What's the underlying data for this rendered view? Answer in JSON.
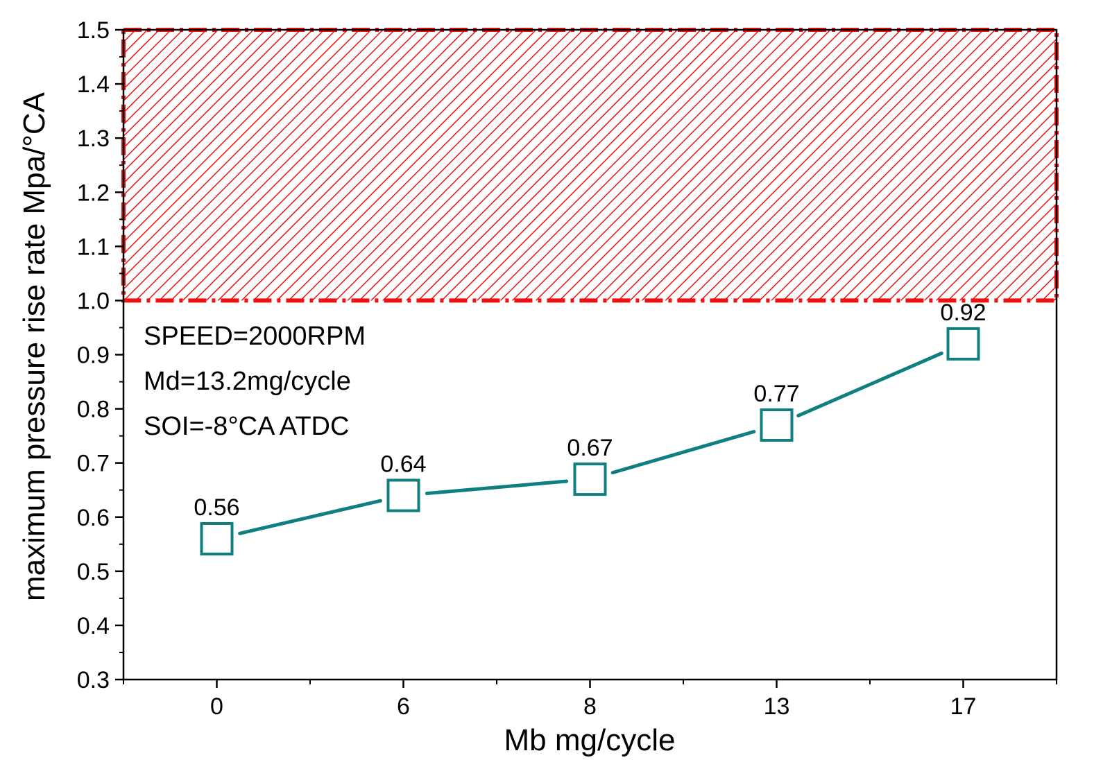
{
  "chart_data": {
    "type": "line",
    "title": "",
    "xlabel": "Mb   mg/cycle",
    "ylabel": "maximum pressure rise rate   Mpa/°CA",
    "categories": [
      "0",
      "6",
      "8",
      "13",
      "17"
    ],
    "series": [
      {
        "name": "maximum pressure rise rate",
        "values": [
          0.56,
          0.64,
          0.67,
          0.77,
          0.92
        ],
        "color": "#0f7f7f",
        "marker": "hollow-square"
      }
    ],
    "data_labels": [
      "0.56",
      "0.64",
      "0.67",
      "0.77",
      "0.92"
    ],
    "ylim": [
      0.3,
      1.5
    ],
    "yticks": [
      0.3,
      0.4,
      0.5,
      0.6,
      0.7,
      0.8,
      0.9,
      1.0,
      1.1,
      1.2,
      1.3,
      1.4,
      1.5
    ],
    "ytick_labels": [
      "0.3",
      "0.4",
      "0.5",
      "0.6",
      "0.7",
      "0.8",
      "0.9",
      "1.0",
      "1.1",
      "1.2",
      "1.3",
      "1.4",
      "1.5"
    ],
    "x_category_range": [
      -0.5,
      4.5
    ],
    "grid": false,
    "limit_region": {
      "from": 1.0,
      "to": 1.5,
      "color": "#ee1111",
      "fill": "hatched"
    },
    "annotations": [
      "SPEED=2000RPM",
      "Md=13.2mg/cycle",
      "SOI=-8°CA  ATDC"
    ]
  }
}
